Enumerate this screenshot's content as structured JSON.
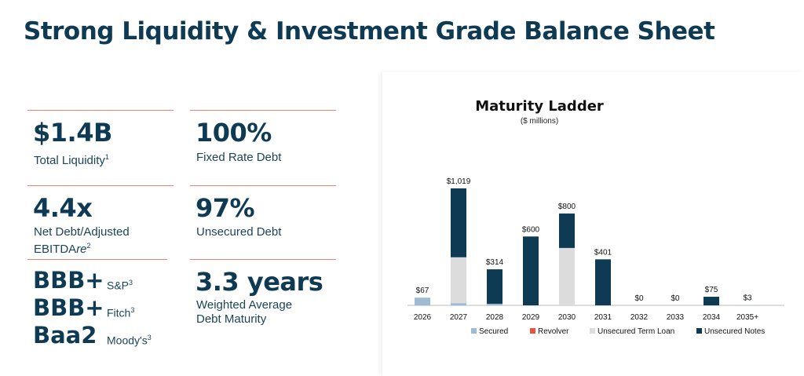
{
  "title": "Strong Liquidity & Investment Grade Balance Sheet",
  "metrics": {
    "liquidity": {
      "value": "$1.4B",
      "label": "Total Liquidity",
      "sup": "1"
    },
    "fixed": {
      "value": "100%",
      "label": "Fixed Rate Debt"
    },
    "leverage": {
      "value": "4.4x",
      "label_line1": "Net Debt/Adjusted",
      "label_line2_a": "EBITDA",
      "label_line2_b": "re",
      "sup": "2"
    },
    "unsecured": {
      "value": "97%",
      "label": "Unsecured Debt"
    },
    "maturity": {
      "value": "3.3 years",
      "label_line1": "Weighted Average",
      "label_line2": "Debt Maturity"
    }
  },
  "ratings": [
    {
      "rating": "BBB+",
      "agency": "S&P",
      "sup": "3"
    },
    {
      "rating": "BBB+",
      "agency": "Fitch",
      "sup": "3"
    },
    {
      "rating": "Baa2",
      "agency": "Moody's",
      "sup": "3"
    }
  ],
  "colors": {
    "secured": "#9dbbd2",
    "revolver": "#e8553e",
    "term_loan": "#dcdcdc",
    "notes": "#0e3a54",
    "divider": "#e9826f"
  },
  "chart_data": {
    "type": "bar",
    "stacked": true,
    "title": "Maturity Ladder",
    "subtitle": "($ millions)",
    "categories": [
      "2026",
      "2027",
      "2028",
      "2029",
      "2030",
      "2031",
      "2032",
      "2033",
      "2034",
      "2035+"
    ],
    "totals_labels": [
      "$67",
      "$1,019",
      "$314",
      "$600",
      "$800",
      "$401",
      "$0",
      "$0",
      "$75",
      "$3"
    ],
    "series": [
      {
        "name": "Secured",
        "color": "#9dbbd2",
        "values": [
          67,
          19,
          14,
          0,
          0,
          0,
          0,
          0,
          0,
          3
        ]
      },
      {
        "name": "Revolver",
        "color": "#e8553e",
        "values": [
          0,
          0,
          0,
          0,
          0,
          0,
          0,
          0,
          0,
          0
        ]
      },
      {
        "name": "Unsecured Term Loan",
        "color": "#dcdcdc",
        "values": [
          0,
          400,
          0,
          0,
          500,
          0,
          0,
          0,
          0,
          0
        ]
      },
      {
        "name": "Unsecured Notes",
        "color": "#0e3a54",
        "values": [
          0,
          600,
          300,
          600,
          300,
          401,
          0,
          0,
          75,
          0
        ]
      }
    ],
    "ylim": [
      0,
      1100
    ],
    "legend": "bottom"
  }
}
